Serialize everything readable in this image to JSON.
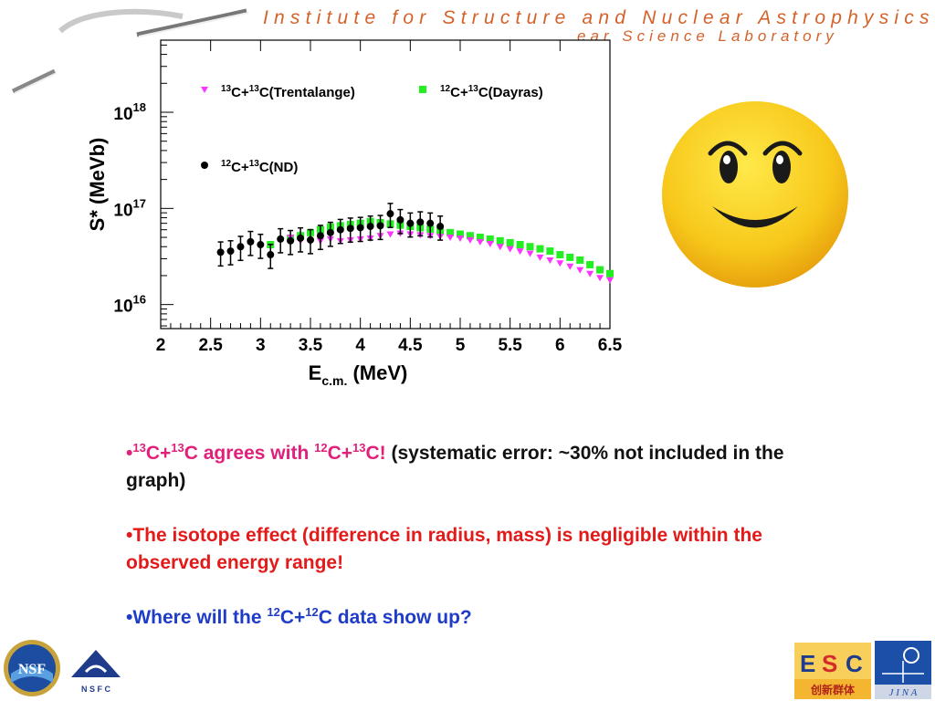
{
  "header": {
    "line1": "Institute for Structure and Nuclear Astrophysics",
    "line2": "ear Science Laboratory"
  },
  "colors": {
    "header_text": "#d4622a",
    "trentalange": "#ff33ff",
    "dayras": "#22ee22",
    "nd": "#000000",
    "bullet_highlight": "#e0207a",
    "bullet_red": "#e21a1a",
    "bullet_blue": "#1f3cc8"
  },
  "chart_data": {
    "type": "scatter",
    "xlabel_main": "E",
    "xlabel_sub": "c.m.",
    "xlabel_unit": "(MeV)",
    "ylabel": "S* (MeVb)",
    "xlim": [
      2,
      6.5
    ],
    "ylim_log10": [
      15.75,
      18.75
    ],
    "y_scale": "log",
    "x_ticks": [
      "2",
      "2.5",
      "3",
      "3.5",
      "4",
      "4.5",
      "5",
      "5.5",
      "6",
      "6.5"
    ],
    "y_ticks": [
      {
        "base": "10",
        "exp": "16",
        "log": 16
      },
      {
        "base": "10",
        "exp": "17",
        "log": 17
      },
      {
        "base": "10",
        "exp": "18",
        "log": 18
      }
    ],
    "legend_placement": "top",
    "series": [
      {
        "name_a_mass": "13",
        "name_a": "C+",
        "name_b_mass": "13",
        "name_b": "C(Trentalange)",
        "marker": "triangle-down",
        "color": "#ff33ff",
        "x": [
          3.3,
          3.4,
          3.5,
          3.6,
          3.7,
          3.8,
          3.9,
          4.0,
          4.1,
          4.2,
          4.3,
          4.4,
          4.5,
          4.6,
          4.7,
          4.8,
          4.9,
          5.0,
          5.1,
          5.2,
          5.3,
          5.4,
          5.5,
          5.6,
          5.7,
          5.8,
          5.9,
          6.0,
          6.1,
          6.2,
          6.3,
          6.4,
          6.5
        ],
        "y": [
          5e+16,
          4.6e+16,
          4.5e+16,
          4.6e+16,
          4.8e+16,
          4.6e+16,
          4.7e+16,
          4.8e+16,
          4.9e+16,
          5.2e+16,
          5.4e+16,
          5.5e+16,
          5.4e+16,
          5.3e+16,
          5.2e+16,
          5.1e+16,
          5e+16,
          4.9e+16,
          4.7e+16,
          4.5e+16,
          4.3e+16,
          4e+16,
          3.8e+16,
          3.6e+16,
          3.4e+16,
          3.1e+16,
          2.9e+16,
          2.7e+16,
          2.5e+16,
          2.3e+16,
          2.1e+16,
          1.9e+16,
          1.8e+16
        ]
      },
      {
        "name_a_mass": "12",
        "name_a": "C+",
        "name_b_mass": "13",
        "name_b": "C(Dayras)",
        "marker": "square",
        "color": "#22ee22",
        "x": [
          3.1,
          3.3,
          3.4,
          3.5,
          3.6,
          3.7,
          3.8,
          3.9,
          4.0,
          4.1,
          4.2,
          4.3,
          4.4,
          4.5,
          4.6,
          4.7,
          4.8,
          4.9,
          5.0,
          5.1,
          5.2,
          5.3,
          5.4,
          5.5,
          5.6,
          5.7,
          5.8,
          5.9,
          6.0,
          6.1,
          6.2,
          6.3,
          6.4,
          6.5
        ],
        "y": [
          4.2e+16,
          4.9e+16,
          5.2e+16,
          5.6e+16,
          6e+16,
          6.4e+16,
          6.6e+16,
          6.8e+16,
          7e+16,
          7.3e+16,
          7.1e+16,
          6.9e+16,
          6.7e+16,
          6.5e+16,
          6.3e+16,
          6.1e+16,
          5.8e+16,
          5.6e+16,
          5.4e+16,
          5.2e+16,
          5e+16,
          4.8e+16,
          4.6e+16,
          4.4e+16,
          4.2e+16,
          4e+16,
          3.8e+16,
          3.6e+16,
          3.3e+16,
          3.1e+16,
          2.9e+16,
          2.6e+16,
          2.3e+16,
          2.1e+16
        ]
      },
      {
        "name_a_mass": "12",
        "name_a": "C+",
        "name_b_mass": "13",
        "name_b": "C(ND)",
        "marker": "circle",
        "color": "#000000",
        "x": [
          2.6,
          2.7,
          2.8,
          2.9,
          3.0,
          3.1,
          3.2,
          3.3,
          3.4,
          3.5,
          3.6,
          3.7,
          3.8,
          3.9,
          4.0,
          4.1,
          4.2,
          4.3,
          4.4,
          4.5,
          4.6,
          4.7,
          4.8
        ],
        "y": [
          3.5e+16,
          3.6e+16,
          4e+16,
          4.5e+16,
          4.2e+16,
          3.3e+16,
          4.8e+16,
          4.6e+16,
          4.9e+16,
          4.7e+16,
          5.2e+16,
          5.6e+16,
          6e+16,
          6.2e+16,
          6.3e+16,
          6.5e+16,
          6.6e+16,
          8.8e+16,
          7.6e+16,
          7e+16,
          7.2e+16,
          7e+16,
          6.5e+16
        ],
        "error_rel": 0.28
      }
    ]
  },
  "bullets": [
    {
      "parts": [
        {
          "t": "•",
          "c": "magenta"
        },
        {
          "t": "13",
          "c": "magenta",
          "sup": true
        },
        {
          "t": "C+",
          "c": "magenta"
        },
        {
          "t": "13",
          "c": "magenta",
          "sup": true
        },
        {
          "t": "C agrees with ",
          "c": "magenta"
        },
        {
          "t": "12",
          "c": "magenta",
          "sup": true
        },
        {
          "t": "C+",
          "c": "magenta"
        },
        {
          "t": "13",
          "c": "magenta",
          "sup": true
        },
        {
          "t": "C! ",
          "c": "magenta"
        },
        {
          "t": "(systematic error: ~30% not included in the graph)",
          "c": "black"
        }
      ]
    },
    {
      "parts": [
        {
          "t": "•The isotope effect (difference in radius, mass) is negligible within the observed energy range!",
          "c": "red"
        }
      ]
    },
    {
      "parts": [
        {
          "t": "•Where will the ",
          "c": "blue"
        },
        {
          "t": "12",
          "c": "blue",
          "sup": true
        },
        {
          "t": "C+",
          "c": "blue"
        },
        {
          "t": "12",
          "c": "blue",
          "sup": true
        },
        {
          "t": "C data show up?",
          "c": "blue"
        }
      ]
    }
  ],
  "logos": {
    "nsf": "NSF",
    "nsfc": "N S F C",
    "esc_top_left": "E",
    "esc_top_mid": "S",
    "esc_top_right": "C",
    "esc_bottom": "创新群体",
    "jina": "J I N A"
  }
}
